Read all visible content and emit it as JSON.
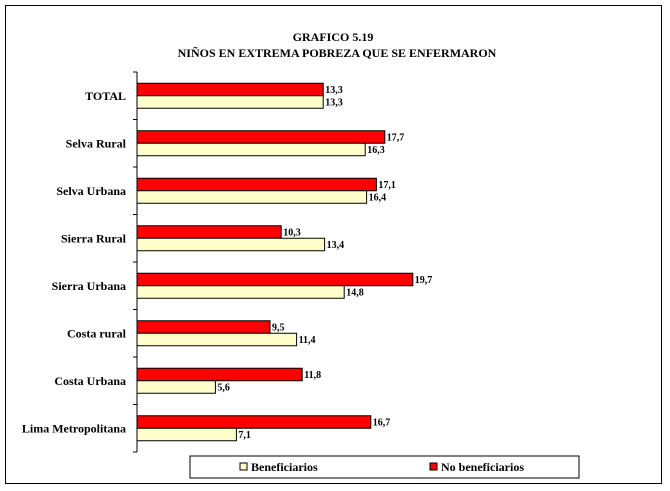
{
  "chart_data": {
    "type": "bar",
    "orientation": "horizontal",
    "title": "GRAFICO 5.19",
    "subtitle": "NIÑOS EN EXTREMA POBREZA QUE SE ENFERMARON",
    "xlabel": "",
    "ylabel": "",
    "xlim": [
      0,
      25
    ],
    "grid": false,
    "legend_position": "bottom",
    "categories": [
      "TOTAL",
      "Selva Rural",
      "Selva Urbana",
      "Sierra Rural",
      "Sierra Urbana",
      "Costa rural",
      "Costa Urbana",
      "Lima Metropolitana"
    ],
    "series": [
      {
        "name": "No beneficiarios",
        "color": "#ff0000",
        "values": [
          13.3,
          17.7,
          17.1,
          10.3,
          19.7,
          9.5,
          11.8,
          16.7
        ],
        "labels": [
          "13,3",
          "17,7",
          "17,1",
          "10,3",
          "19,7",
          "9,5",
          "11,8",
          "16,7"
        ]
      },
      {
        "name": "Beneficiarios",
        "color": "#ffffcc",
        "values": [
          13.3,
          16.3,
          16.4,
          13.4,
          14.8,
          11.4,
          5.6,
          7.1
        ],
        "labels": [
          "13,3",
          "16,3",
          "16,4",
          "13,4",
          "14,8",
          "11,4",
          "5,6",
          "7,1"
        ]
      }
    ],
    "legend": [
      {
        "series": 1,
        "label": "Beneficiarios"
      },
      {
        "series": 0,
        "label": "No beneficiarios"
      }
    ]
  }
}
